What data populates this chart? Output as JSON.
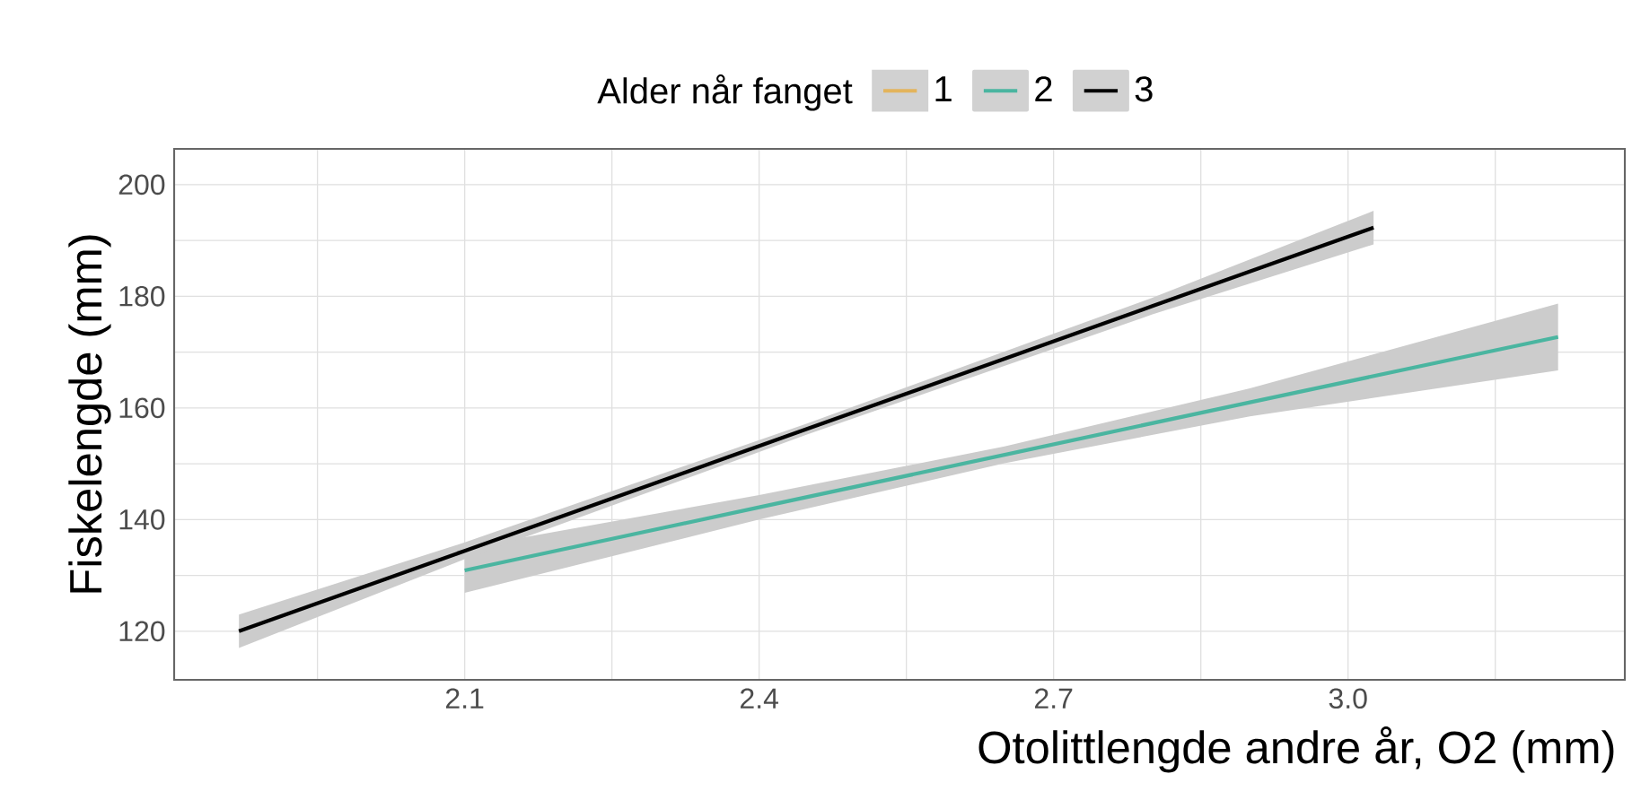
{
  "chart_data": {
    "type": "line",
    "xlabel": "Otolittlengde andre år, O2 (mm)",
    "ylabel": "Fiskelengde (mm)",
    "legend_title": "Alder når fanget",
    "xlim": [
      1.804,
      3.282
    ],
    "ylim": [
      111.3,
      206.4
    ],
    "xticks": [
      {
        "value": 1.95,
        "label": null
      },
      2.1,
      {
        "value": 2.25,
        "label": null
      },
      2.4,
      {
        "value": 2.55,
        "label": null
      },
      2.7,
      {
        "value": 2.85,
        "label": null
      },
      {
        "value": 3.0,
        "label": "3.0"
      },
      {
        "value": 3.15,
        "label": null
      }
    ],
    "yticks": [
      120,
      {
        "value": 130,
        "label": null
      },
      140,
      {
        "value": 150,
        "label": null
      },
      160,
      {
        "value": 170,
        "label": null
      },
      180,
      {
        "value": 190,
        "label": null
      },
      200
    ],
    "grid": true,
    "legend": "top",
    "line_style": "solid",
    "marker": "none",
    "series": [
      {
        "name": "1",
        "color": "#e3b45c"
      },
      {
        "name": "2",
        "color": "#4ab5a0",
        "x": [
          2.1,
          2.4,
          2.65,
          2.9,
          3.214
        ],
        "values": [
          130.9,
          142.2,
          151.6,
          161.0,
          172.7
        ],
        "lower": [
          126.9,
          140.0,
          150.1,
          158.5,
          166.7
        ],
        "upper": [
          134.9,
          144.4,
          153.1,
          163.5,
          178.7
        ]
      },
      {
        "name": "3",
        "color": "#000000",
        "x": [
          1.87,
          2.1,
          2.45,
          2.8,
          3.026
        ],
        "values": [
          120.0,
          134.4,
          156.3,
          178.2,
          192.3
        ],
        "lower": [
          117.0,
          132.9,
          155.3,
          176.7,
          189.3
        ],
        "upper": [
          123.0,
          135.9,
          157.3,
          179.7,
          195.3
        ]
      }
    ]
  }
}
